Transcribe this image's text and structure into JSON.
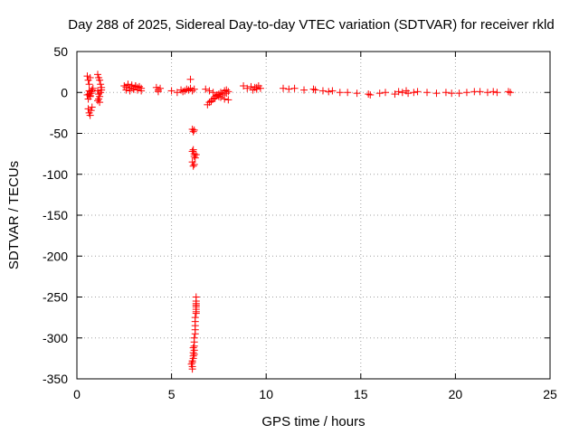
{
  "chart_data": {
    "type": "scatter",
    "title": "Day 288 of 2025, Sidereal Day-to-day VTEC variation (SDTVAR) for receiver rkld",
    "xlabel": "GPS time / hours",
    "ylabel": "SDTVAR / TECUs",
    "xlim": [
      0,
      25
    ],
    "ylim": [
      -350,
      50
    ],
    "xticks": [
      0,
      5,
      10,
      15,
      20,
      25
    ],
    "yticks": [
      50,
      0,
      -50,
      -100,
      -150,
      -200,
      -250,
      -300,
      -350
    ],
    "grid": true,
    "marker": "plus",
    "color": "#ff0000",
    "series": [
      {
        "name": "SDTVAR",
        "x": [
          0.55,
          0.6,
          0.65,
          0.7,
          0.55,
          0.6,
          0.65,
          0.7,
          0.75,
          0.6,
          0.65,
          0.7,
          0.75,
          0.8,
          0.65,
          0.7,
          0.75,
          0.8,
          0.85,
          1.1,
          1.15,
          1.2,
          1.25,
          1.3,
          1.1,
          1.15,
          1.2,
          1.25,
          1.3,
          1.1,
          1.15,
          1.2,
          2.5,
          2.6,
          2.7,
          2.8,
          2.9,
          3.0,
          3.1,
          3.2,
          3.3,
          3.4,
          2.6,
          2.8,
          3.0,
          3.2,
          3.4,
          2.7,
          2.9,
          3.1,
          3.3,
          4.2,
          4.3,
          4.4,
          4.3,
          5.0,
          5.3,
          5.5,
          5.6,
          5.7,
          5.8,
          5.9,
          6.0,
          6.1,
          6.2,
          6.0,
          6.1,
          6.15,
          6.2,
          6.1,
          6.15,
          6.2,
          6.1,
          6.15,
          6.2,
          6.2,
          6.25,
          6.3,
          6.3,
          6.3,
          6.3,
          6.3,
          6.3,
          6.3,
          6.3,
          6.3,
          6.25,
          6.25,
          6.25,
          6.25,
          6.25,
          6.2,
          6.2,
          6.2,
          6.2,
          6.2,
          6.15,
          6.15,
          6.15,
          6.15,
          6.1,
          6.1,
          6.1,
          6.1,
          6.05,
          6.9,
          7.0,
          7.1,
          7.2,
          7.3,
          7.4,
          7.5,
          7.6,
          7.7,
          7.8,
          7.9,
          8.0,
          6.8,
          7.0,
          7.2,
          7.4,
          7.6,
          7.8,
          8.0,
          7.1,
          7.3,
          7.5,
          7.7,
          7.9,
          8.8,
          9.0,
          9.2,
          9.4,
          9.5,
          9.6,
          9.7,
          9.3,
          9.5,
          10.9,
          11.2,
          11.5,
          12.0,
          12.5,
          12.6,
          13.0,
          13.3,
          13.5,
          13.9,
          14.3,
          14.8,
          15.4,
          15.5,
          16.0,
          16.3,
          16.8,
          17.0,
          17.2,
          17.4,
          17.5,
          17.8,
          18.0,
          18.5,
          19.0,
          19.5,
          19.8,
          20.2,
          20.6,
          21.0,
          21.3,
          21.7,
          22.0,
          22.2,
          22.8,
          22.9
        ],
        "y": [
          20,
          15,
          10,
          18,
          -3,
          -8,
          2,
          -5,
          -1,
          -20,
          -25,
          -28,
          -22,
          -18,
          -2,
          -4,
          1,
          3,
          5,
          22,
          18,
          15,
          10,
          6,
          2,
          -2,
          -5,
          0,
          3,
          -10,
          -8,
          -12,
          8,
          6,
          9,
          5,
          7,
          4,
          8,
          6,
          7,
          5,
          3,
          2,
          4,
          3,
          2,
          10,
          9,
          8,
          7,
          6,
          3,
          5,
          1,
          2,
          0,
          3,
          1,
          2,
          4,
          3,
          5,
          2,
          4,
          16,
          -45,
          -48,
          -46,
          -72,
          -70,
          -75,
          -85,
          -90,
          -88,
          -78,
          -80,
          -76,
          -250,
          -255,
          -260,
          -258,
          -265,
          -262,
          -270,
          -268,
          -275,
          -280,
          -285,
          -290,
          -295,
          -300,
          -305,
          -310,
          -315,
          -320,
          -312,
          -318,
          -322,
          -325,
          -328,
          -330,
          -335,
          -338,
          -332,
          -15,
          -12,
          -10,
          -8,
          -5,
          -3,
          -2,
          0,
          -1,
          2,
          3,
          1,
          4,
          2,
          0,
          -4,
          -6,
          -8,
          -9,
          -11,
          -7,
          -5,
          -3,
          -1,
          8,
          5,
          7,
          6,
          4,
          8,
          5,
          3,
          6,
          5,
          4,
          5,
          3,
          4,
          3,
          2,
          1,
          2,
          0,
          0,
          -1,
          -2,
          -3,
          -1,
          0,
          -2,
          1,
          0,
          2,
          -1,
          0,
          1,
          0,
          -1,
          0,
          -1,
          -1,
          0,
          1,
          1,
          0,
          1,
          0,
          1,
          0
        ]
      }
    ]
  }
}
